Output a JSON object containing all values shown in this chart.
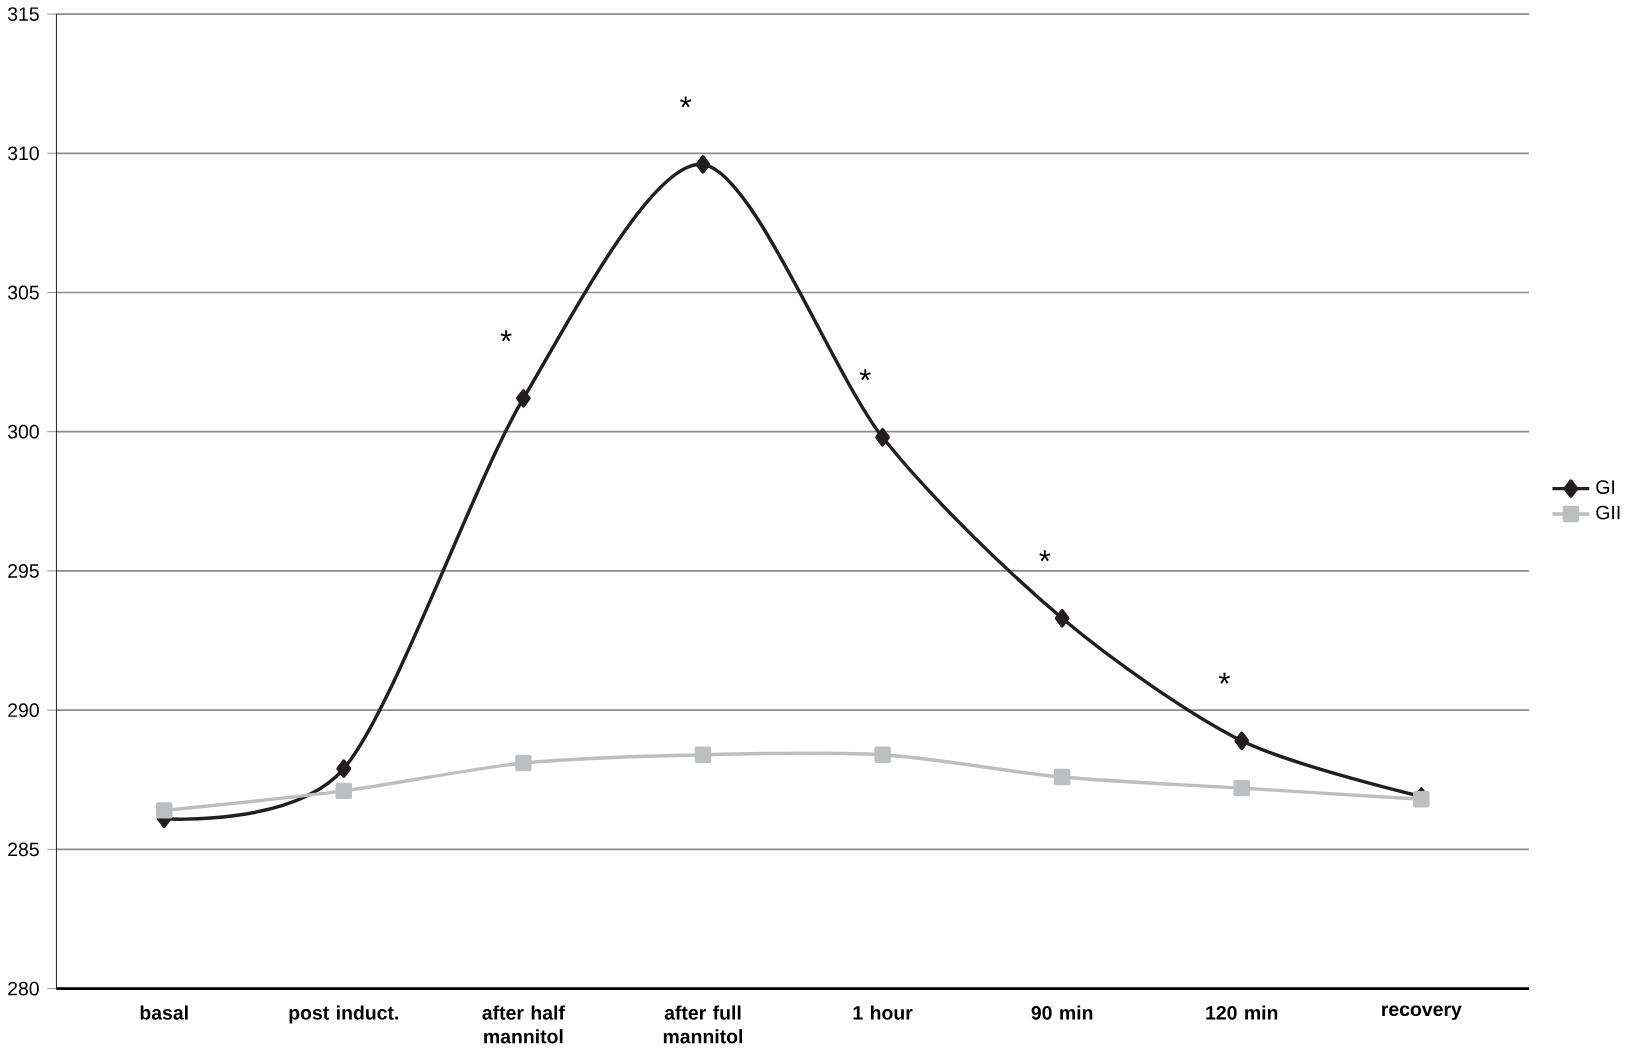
{
  "chart_data": {
    "type": "line",
    "categories": [
      "basal",
      "post induct.",
      "after half mannitol",
      "after full mannitol",
      "1 hour",
      "90 min",
      "120 min",
      "recovery"
    ],
    "series": [
      {
        "name": "GI",
        "color": "#231f20",
        "marker": "diamond",
        "values": [
          286.1,
          287.9,
          301.2,
          309.6,
          299.8,
          293.3,
          288.9,
          286.9
        ]
      },
      {
        "name": "GII",
        "color": "#bcbec0",
        "marker": "square",
        "values": [
          286.4,
          287.1,
          288.1,
          288.4,
          288.4,
          287.6,
          287.2,
          286.8
        ]
      }
    ],
    "ylim": [
      280,
      315
    ],
    "yticks": [
      280,
      285,
      290,
      295,
      300,
      305,
      310,
      315
    ],
    "grid": "y",
    "legend": "right",
    "line_style": "solid",
    "annotations": [
      {
        "text": "*",
        "x": "after half mannitol",
        "y": 301.2
      },
      {
        "text": "*",
        "x": "after full mannitol",
        "y": 309.6
      },
      {
        "text": "*",
        "x": "1 hour",
        "y": 299.8
      },
      {
        "text": "*",
        "x": "90 min",
        "y": 293.3
      },
      {
        "text": "*",
        "x": "120 min",
        "y": 288.9
      }
    ]
  }
}
